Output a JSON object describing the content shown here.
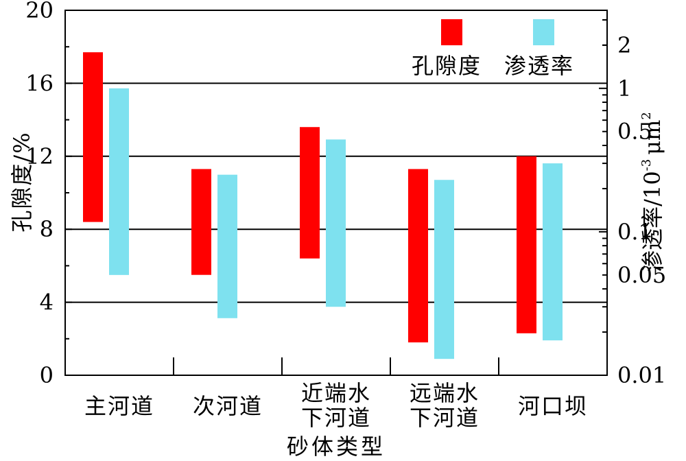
{
  "chart_data": {
    "type": "bar",
    "xlabel": "砂体类型",
    "ylabel": "孔隙度/%",
    "y2label_main": "渗透率/10",
    "y2label_exp": "-3",
    "y2label_unit": "μm",
    "y2label_unit_exp": "2",
    "categories": [
      [
        "主河道"
      ],
      [
        "次河道"
      ],
      [
        "近端水",
        "下河道"
      ],
      [
        "远端水",
        "下河道"
      ],
      [
        "河口坝"
      ]
    ],
    "ylim": [
      0,
      20
    ],
    "yticks": [
      "0",
      "4",
      "8",
      "12",
      "16",
      "20"
    ],
    "y2scale": "log",
    "y2lim": [
      0.01,
      3.5
    ],
    "y2ticks": [
      "0.01",
      "0.05",
      "0.1",
      "0.5",
      "1",
      "2"
    ],
    "grid": "horizontal at 4, 8, 12, 16",
    "legend_position": "top-right",
    "series": [
      {
        "name": "孔隙度",
        "axis": "left",
        "color": "#ff0000",
        "ranges": [
          [
            8.4,
            17.7
          ],
          [
            5.5,
            11.3
          ],
          [
            6.4,
            13.6
          ],
          [
            1.8,
            11.3
          ],
          [
            2.3,
            12.0
          ]
        ]
      },
      {
        "name": "渗透率",
        "axis": "right",
        "color": "#7ee1ef",
        "ranges": [
          [
            0.05,
            1.0
          ],
          [
            0.025,
            0.25
          ],
          [
            0.03,
            0.44
          ],
          [
            0.013,
            0.23
          ],
          [
            0.0175,
            0.3
          ]
        ]
      }
    ]
  }
}
